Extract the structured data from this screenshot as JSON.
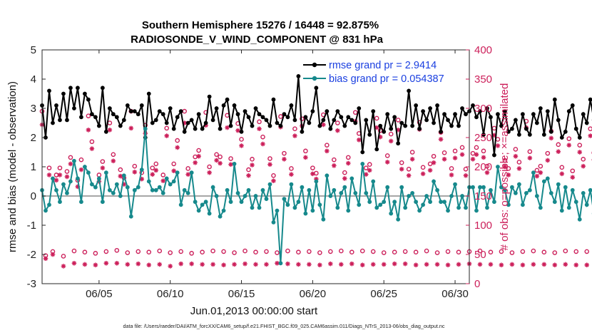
{
  "chart_data": {
    "type": "line",
    "title": "Southern Hemisphere 15276 / 16448 = 92.875%",
    "subtitle": "RADIOSONDE_V_WIND_COMPONENT @ 831 hPa",
    "xlabel": "Jun.01,2013 00:00:00 start",
    "ylabel": "rmse and bias (model - observation)",
    "ylabel_right": "# of obs: o=possible; ×=assimilated",
    "xlim": [
      1,
      31
    ],
    "ylim": [
      -3,
      5
    ],
    "ylim_right": [
      0,
      400
    ],
    "x_ticks": [
      5,
      10,
      15,
      20,
      25,
      30
    ],
    "x_tick_labels": [
      "06/05",
      "06/10",
      "06/15",
      "06/20",
      "06/25",
      "06/30"
    ],
    "y_ticks": [
      -3,
      -2,
      -1,
      0,
      1,
      2,
      3,
      4,
      5
    ],
    "y_tick_labels": [
      "-3",
      "-2",
      "-1",
      "0",
      "1",
      "2",
      "3",
      "4",
      "5"
    ],
    "y_ticks_right": [
      0,
      50,
      100,
      150,
      200,
      250,
      300,
      350,
      400
    ],
    "y_tick_labels_right": [
      "0",
      "50",
      "100",
      "150",
      "200",
      "250",
      "300",
      "350",
      "400"
    ],
    "x_start": 1.0,
    "x_step": 0.25,
    "series": [
      {
        "name": "rmse grand pr = 2.9414",
        "axis": "left",
        "color": "#000000",
        "marker": "filled-circle",
        "values": [
          3.1,
          2.0,
          3.6,
          2.5,
          3.1,
          2.6,
          3.5,
          2.6,
          3.7,
          3.0,
          3.7,
          2.7,
          3.5,
          3.3,
          2.8,
          2.7,
          2.4,
          3.7,
          2.2,
          3.0,
          2.8,
          2.7,
          2.4,
          2.6,
          3.1,
          2.9,
          2.9,
          2.8,
          3.1,
          2.0,
          3.5,
          2.5,
          2.6,
          2.9,
          2.8,
          2.5,
          3.0,
          2.3,
          2.7,
          2.9,
          2.2,
          2.5,
          2.6,
          2.3,
          2.8,
          2.3,
          2.5,
          3.4,
          2.6,
          3.0,
          2.3,
          3.1,
          3.3,
          2.4,
          3.1,
          2.8,
          2.2,
          2.9,
          2.7,
          2.4,
          3.0,
          2.8,
          2.7,
          2.6,
          2.4,
          3.3,
          2.5,
          2.4,
          2.8,
          2.7,
          3.1,
          2.6,
          4.1,
          2.2,
          2.7,
          2.5,
          2.9,
          3.7,
          2.4,
          2.6,
          2.9,
          2.3,
          2.6,
          2.9,
          2.7,
          2.4,
          2.7,
          2.6,
          2.5,
          3.0,
          1.5,
          2.6,
          2.1,
          2.9,
          1.6,
          2.4,
          2.2,
          2.8,
          2.3,
          2.7,
          1.8,
          2.5,
          2.4,
          3.6,
          2.4,
          3.1,
          2.3,
          2.9,
          2.6,
          3.0,
          2.5,
          3.1,
          2.2,
          2.8,
          2.6,
          2.4,
          2.8,
          2.4,
          3.0,
          2.8,
          2.9,
          3.1,
          2.7,
          2.9,
          2.1,
          3.0,
          2.7,
          1.4,
          2.8,
          2.4,
          2.9,
          2.2,
          2.3,
          2.6,
          2.1,
          2.8,
          2.3,
          2.1,
          2.8,
          2.5,
          3.0,
          2.1,
          2.9,
          2.2,
          3.3,
          2.6,
          2.0,
          2.2,
          2.9,
          3.1,
          2.3,
          2.0,
          2.8,
          2.5,
          3.3,
          2.6,
          3.2,
          2.1,
          2.9,
          2.0,
          3.1,
          3.3,
          2.3,
          3.0,
          3.4,
          2.0,
          3.2,
          3.6
        ]
      },
      {
        "name": "bias grand pr = 0.054387",
        "axis": "left",
        "color": "#16898c",
        "marker": "filled-circle",
        "values": [
          0.2,
          -0.5,
          -0.3,
          0.6,
          0.2,
          -0.2,
          0.4,
          0.1,
          0.5,
          1.2,
          0.6,
          -0.2,
          1.0,
          0.8,
          0.4,
          0.3,
          0.6,
          -0.2,
          0.8,
          0.2,
          0.1,
          0.4,
          0.0,
          0.7,
          0.3,
          -0.7,
          0.2,
          0.3,
          0.9,
          2.3,
          0.5,
          0.2,
          0.2,
          0.3,
          0.1,
          0.6,
          0.4,
          0.5,
          0.8,
          -0.3,
          0.2,
          0.1,
          0.8,
          -0.2,
          -0.5,
          -0.3,
          -0.2,
          -0.6,
          0.3,
          0.0,
          -0.7,
          -0.5,
          0.2,
          -0.2,
          1.1,
          0.1,
          -0.2,
          0.0,
          0.2,
          -0.4,
          0.0,
          -0.4,
          0.2,
          -0.1,
          0.4,
          -0.9,
          -0.5,
          -2.3,
          -0.1,
          -0.3,
          0.4,
          -0.4,
          -0.2,
          0.3,
          -0.6,
          0.2,
          -0.5,
          0.5,
          -0.3,
          -0.8,
          0.7,
          0.0,
          0.2,
          -0.4,
          0.1,
          0.3,
          -0.5,
          0.6,
          0.1,
          -0.3,
          1.1,
          0.1,
          -0.2,
          0.5,
          -0.4,
          -0.3,
          -0.2,
          0.3,
          -0.6,
          -0.2,
          -0.8,
          0.3,
          -0.4,
          0.0,
          0.1,
          -0.2,
          -0.5,
          -0.3,
          0.0,
          -0.2,
          0.5,
          0.2,
          -0.2,
          -0.2,
          -0.5,
          0.0,
          0.4,
          -0.4,
          0.0,
          -0.4,
          0.3,
          0.3,
          -0.5,
          0.3,
          0.3,
          -0.4,
          0.2,
          -0.2,
          1.0,
          0.3,
          0.2,
          -0.3,
          0.3,
          0.1,
          0.4,
          -0.3,
          0.1,
          0.2,
          0.8,
          0.0,
          -0.4,
          0.5,
          0.6,
          0.1,
          -0.2,
          0.4,
          -0.5,
          0.3,
          -0.4,
          0.2,
          -0.2,
          -0.8,
          0.1,
          -0.3,
          0.2,
          -0.6,
          0.0,
          0.3,
          -0.3,
          -0.6,
          0.1,
          -0.5,
          -0.6,
          0.8,
          -0.3,
          -0.4
        ]
      },
      {
        "name": "obs possible (o)",
        "axis": "right",
        "color": "#cc1f5a",
        "marker": "open-circle",
        "values": [
          295,
          48,
          198,
          55,
          186,
          198,
          47,
          192,
          216,
          56,
          177,
          212,
          54,
          287,
          243,
          52,
          186,
          209,
          55,
          275,
          221,
          57,
          195,
          181,
          53,
          295,
          201,
          55,
          190,
          271,
          54,
          198,
          205,
          56,
          186,
          266,
          53,
          205,
          245,
          55,
          295,
          197,
          52,
          217,
          228,
          54,
          293,
          200,
          56,
          221,
          217,
          55,
          288,
          214,
          53,
          274,
          247,
          56,
          195,
          213,
          54,
          277,
          251,
          55,
          214,
          185,
          53,
          286,
          223,
          56,
          197,
          265,
          54,
          282,
          227,
          55,
          198,
          189,
          53,
          289,
          237,
          55,
          212,
          275,
          56,
          190,
          216,
          54,
          293,
          257,
          56,
          198,
          204,
          55,
          283,
          262,
          53,
          219,
          256,
          54,
          280,
          207,
          55,
          196,
          225,
          54,
          276,
          199,
          56,
          205,
          218,
          53,
          259,
          224,
          55,
          197,
          227,
          54,
          233,
          196,
          55,
          223,
          233,
          56,
          227,
          201,
          54,
          266,
          247,
          55,
          211,
          197,
          53,
          230,
          208,
          55,
          278,
          226,
          56,
          194,
          201,
          54,
          223,
          261,
          53,
          238,
          199,
          56,
          248,
          193,
          55,
          237,
          213,
          55,
          265,
          224,
          53,
          284,
          212,
          54,
          223,
          246,
          55,
          240,
          205,
          56,
          232,
          199,
          55
        ]
      },
      {
        "name": "obs assimilated (×)",
        "axis": "right",
        "color": "#cc1f5a",
        "marker": "asterisk",
        "values": [
          272,
          43,
          186,
          50,
          177,
          186,
          30,
          183,
          205,
          35,
          166,
          195,
          33,
          263,
          231,
          32,
          175,
          198,
          35,
          263,
          210,
          35,
          184,
          170,
          33,
          266,
          191,
          34,
          179,
          257,
          32,
          187,
          194,
          33,
          176,
          253,
          30,
          193,
          233,
          34,
          275,
          187,
          34,
          207,
          218,
          33,
          271,
          190,
          33,
          211,
          206,
          32,
          267,
          204,
          33,
          262,
          236,
          34,
          185,
          203,
          33,
          265,
          239,
          33,
          204,
          176,
          35,
          268,
          213,
          34,
          187,
          253,
          33,
          270,
          216,
          33,
          188,
          179,
          32,
          272,
          227,
          34,
          202,
          262,
          33,
          180,
          206,
          34,
          278,
          246,
          32,
          187,
          194,
          33,
          267,
          251,
          33,
          208,
          244,
          34,
          263,
          196,
          34,
          185,
          213,
          32,
          264,
          188,
          33,
          194,
          207,
          33,
          247,
          213,
          32,
          186,
          215,
          33,
          221,
          185,
          34,
          213,
          221,
          33,
          216,
          190,
          33,
          254,
          236,
          32,
          200,
          186,
          33,
          218,
          197,
          32,
          267,
          215,
          33,
          184,
          190,
          33,
          211,
          249,
          32,
          226,
          188,
          33,
          237,
          182,
          32,
          225,
          201,
          32,
          253,
          212,
          33,
          266,
          200,
          33,
          212,
          234,
          34,
          228,
          194,
          32,
          220,
          188,
          33
        ]
      }
    ],
    "zero_line": 0,
    "legend": {
      "position": "top-right",
      "entries": [
        "rmse grand pr = 2.9414",
        "bias grand pr = 0.054387"
      ]
    },
    "grid": false
  },
  "footer": "data file: /Users/raeder/DAI/ATM_forcXX/CAM6_setup/f.e21.FHIST_BGC.f09_025.CAM6assim.011/Diags_NTrS_2013-06/obs_diag_output.nc",
  "colors": {
    "rmse": "#000000",
    "bias": "#16898c",
    "obs": "#cc1f5a",
    "zero": "#9a9a9a",
    "legend_text": "#1a3fe0"
  }
}
